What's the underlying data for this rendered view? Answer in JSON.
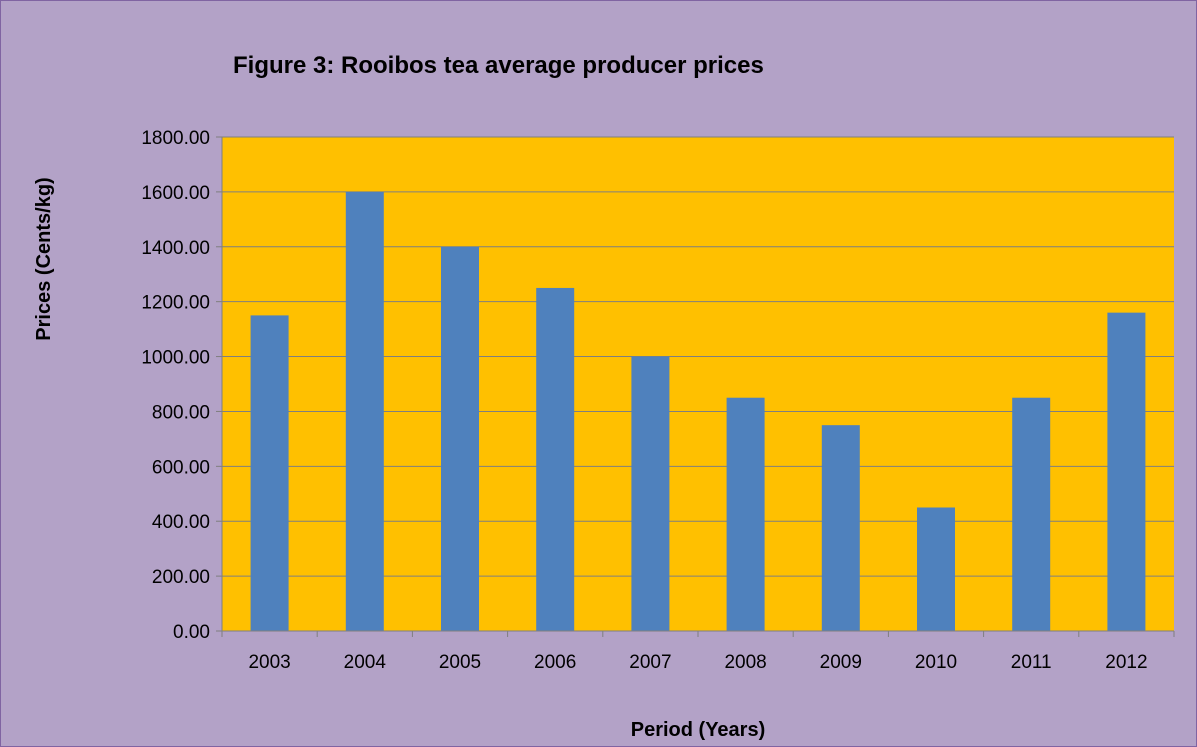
{
  "colors": {
    "chart_background": "#b3a2c7",
    "plot_background": "#ffc000",
    "bar_fill": "#4f81bd",
    "gridline": "#7f7f7f",
    "axis_line": "#7f7f7f"
  },
  "chart_data": {
    "type": "bar",
    "title": "Figure 3: Rooibos tea average producer prices",
    "xlabel": "Period (Years)",
    "ylabel": "Prices (Cents/kg)",
    "categories": [
      "2003",
      "2004",
      "2005",
      "2006",
      "2007",
      "2008",
      "2009",
      "2010",
      "2011",
      "2012"
    ],
    "values": [
      1150,
      1600,
      1400,
      1250,
      1000,
      850,
      750,
      450,
      850,
      1160
    ],
    "ylim": [
      0,
      1800
    ],
    "ytick_step": 200,
    "ytick_labels": [
      "0.00",
      "200.00",
      "400.00",
      "600.00",
      "800.00",
      "1000.00",
      "1200.00",
      "1400.00",
      "1600.00",
      "1800.00"
    ],
    "grid": true,
    "legend": "none"
  }
}
